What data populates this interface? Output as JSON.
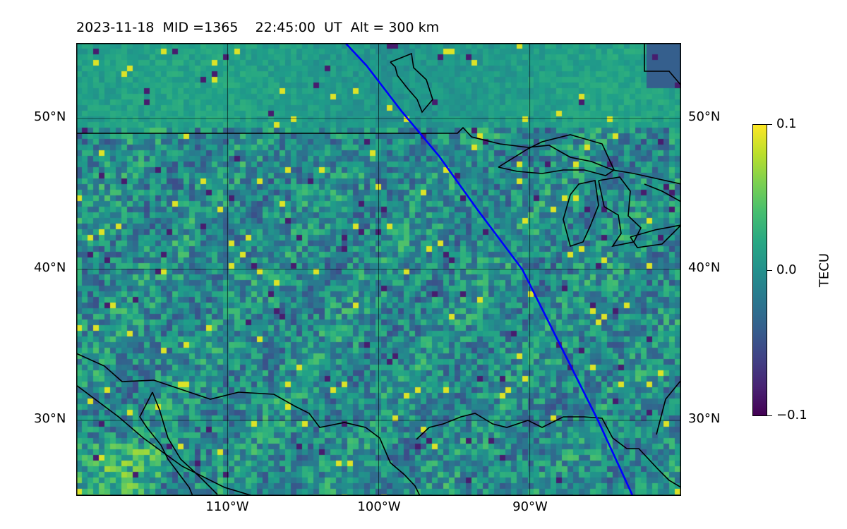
{
  "title": "2023-11-18  MID =1365    22:45:00  UT  Alt = 300 km",
  "map": {
    "extent": {
      "lon": [
        -120,
        -80
      ],
      "lat": [
        25,
        55
      ]
    },
    "lat_ticks": [
      {
        "value": 50,
        "label": "50°N"
      },
      {
        "value": 40,
        "label": "40°N"
      },
      {
        "value": 30,
        "label": "30°N"
      }
    ],
    "lon_ticks": [
      {
        "value": -110,
        "label": "110°W"
      },
      {
        "value": -100,
        "label": "100°W"
      },
      {
        "value": -90,
        "label": "90°W"
      }
    ],
    "field": "TEC perturbation",
    "colormap": "viridis",
    "track_color": "#0000ff",
    "track": [
      [
        -102.2,
        55
      ],
      [
        -100.8,
        53.5
      ],
      [
        -98.5,
        50.5
      ],
      [
        -96,
        47.5
      ],
      [
        -93.5,
        44
      ],
      [
        -90.5,
        40
      ],
      [
        -88,
        35
      ],
      [
        -85.5,
        30
      ],
      [
        -83.2,
        25
      ]
    ]
  },
  "colorbar": {
    "label": "TECU",
    "min": -0.1,
    "max": 0.1,
    "ticks": [
      {
        "value": 0.1,
        "label": "0.1"
      },
      {
        "value": 0.0,
        "label": "0.0"
      },
      {
        "value": -0.1,
        "label": "−0.1"
      }
    ]
  }
}
